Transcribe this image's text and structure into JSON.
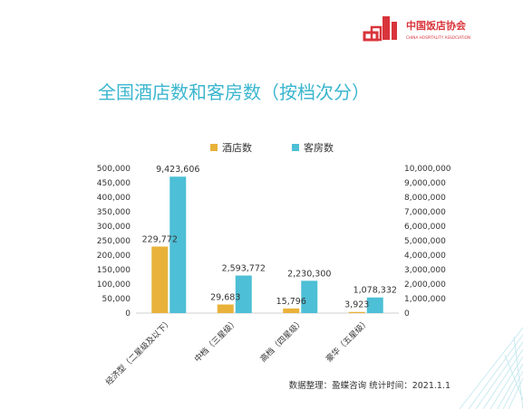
{
  "header": {
    "logo_name_cn": "中国饭店协会",
    "logo_name_en": "CHINA HOSPITALITY ASSOCIATION",
    "title": "全国酒店数和客房数（按档次分）"
  },
  "footer": {
    "source": "数据整理：盈蝶咨询  统计时间：2021.1.1"
  },
  "colors": {
    "hotels": "#e8b23a",
    "rooms": "#4dbfd6",
    "title": "#3bb6cf",
    "logo": "#d9343b"
  },
  "chart_data": {
    "type": "bar",
    "title": "",
    "legend_position": "top",
    "grid": false,
    "categories": [
      "经济型（二星级及以下）",
      "中档（三星级）",
      "高档（四星级）",
      "豪华（五星级）"
    ],
    "series": [
      {
        "name": "酒店数",
        "axis": "left",
        "values": [
          229772,
          29683,
          15796,
          3923
        ],
        "labels": [
          "229,772",
          "29,683",
          "15,796",
          "3,923"
        ]
      },
      {
        "name": "客房数",
        "axis": "right",
        "values": [
          9423606,
          2593772,
          2230300,
          1078332
        ],
        "labels": [
          "9,423,606",
          "2,593,772",
          "2,230,300",
          "1,078,332"
        ]
      }
    ],
    "y_left": {
      "ylim": [
        0,
        500000
      ],
      "ticks": [
        "0",
        "50,000",
        "100,000",
        "150,000",
        "200,000",
        "250,000",
        "300,000",
        "350,000",
        "400,000",
        "450,000",
        "500,000"
      ]
    },
    "y_right": {
      "ylim": [
        0,
        10000000
      ],
      "ticks": [
        "0",
        "1,000,000",
        "2,000,000",
        "3,000,000",
        "4,000,000",
        "5,000,000",
        "6,000,000",
        "7,000,000",
        "8,000,000",
        "9,000,000",
        "10,000,000"
      ]
    }
  }
}
